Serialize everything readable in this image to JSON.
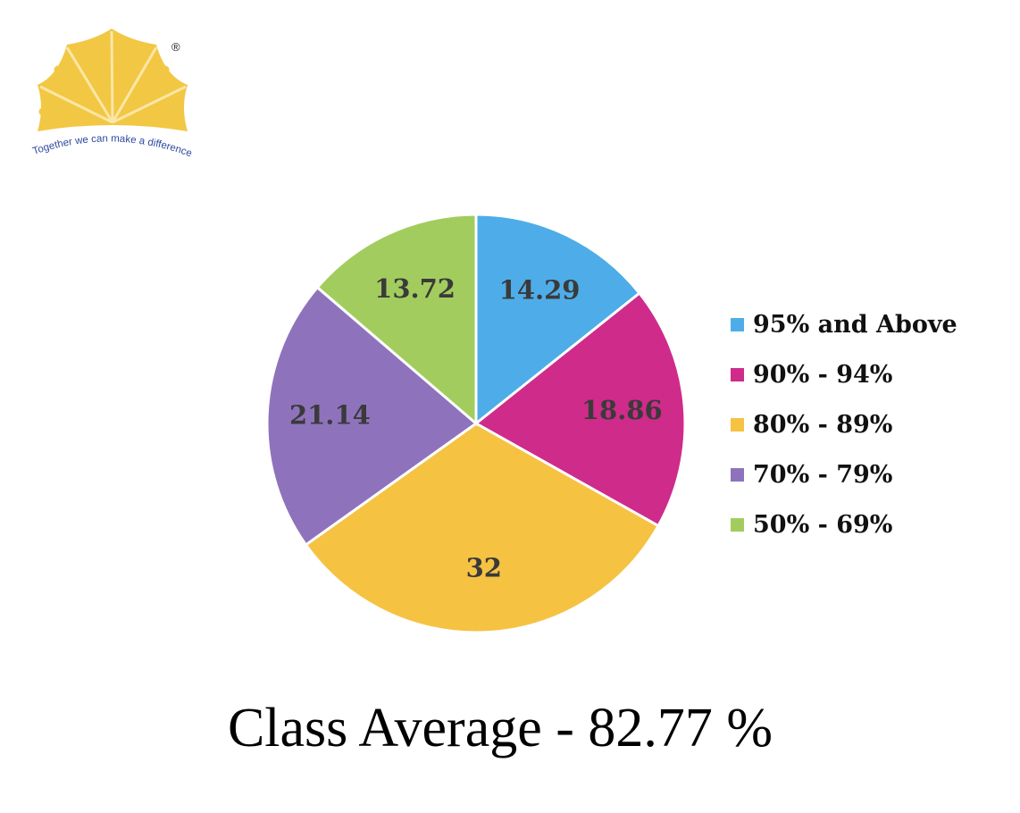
{
  "logo": {
    "tagline": "Together we can make a difference",
    "mark": "®"
  },
  "chart_data": {
    "type": "pie",
    "title": "Class Average - 82.77 %",
    "categories": [
      "95% and Above",
      "90% - 94%",
      "80% - 89%",
      "70% - 79%",
      "50% - 69%"
    ],
    "values": [
      14.29,
      18.86,
      32,
      21.14,
      13.72
    ],
    "labels": [
      "14.29",
      "18.86",
      "32",
      "21.14",
      "13.72"
    ],
    "colors": [
      "#4EADE8",
      "#CF2B8A",
      "#F5C242",
      "#8E73BC",
      "#A2CD5E"
    ],
    "start_angle": "12 o'clock",
    "direction": "clockwise",
    "legend_position": "right"
  }
}
